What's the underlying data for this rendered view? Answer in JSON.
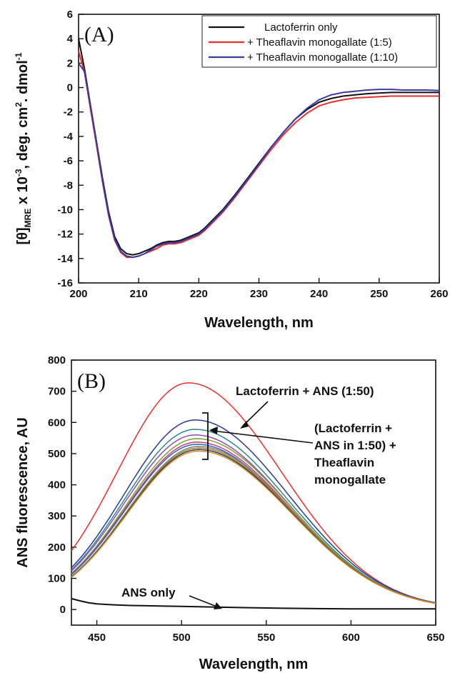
{
  "chart_data": [
    {
      "type": "line",
      "panel_label": "(A)",
      "xlabel": "Wavelength, nm",
      "ylabel_parts": {
        "main": "[θ]",
        "sub": "MRE",
        "mid": " x 10",
        "sup": "-3",
        "rest": ", deg. cm",
        "sup2": "2",
        "end": ". dmol",
        "sup3": "-1"
      },
      "xlim": [
        200,
        260
      ],
      "ylim": [
        -16,
        6
      ],
      "xticks": [
        200,
        210,
        220,
        230,
        240,
        250,
        260
      ],
      "yticks": [
        -16,
        -14,
        -12,
        -10,
        -8,
        -6,
        -4,
        -2,
        0,
        2,
        4,
        6
      ],
      "legend": "top-right",
      "series": [
        {
          "name": "Lactoferrin only",
          "color": "#111111",
          "x": [
            200,
            201,
            202,
            203,
            204,
            205,
            206,
            207,
            208,
            209,
            210,
            211,
            212,
            213,
            214,
            215,
            216,
            217,
            218,
            219,
            220,
            221,
            222,
            224,
            226,
            228,
            230,
            232,
            234,
            236,
            238,
            240,
            242,
            244,
            246,
            248,
            250,
            252,
            254,
            256,
            258,
            260
          ],
          "y": [
            4.0,
            1.5,
            -1.5,
            -4.5,
            -7.5,
            -10.2,
            -12.2,
            -13.2,
            -13.6,
            -13.7,
            -13.6,
            -13.4,
            -13.2,
            -12.9,
            -12.7,
            -12.6,
            -12.6,
            -12.5,
            -12.3,
            -12.1,
            -11.9,
            -11.5,
            -11.0,
            -10.0,
            -8.8,
            -7.5,
            -6.2,
            -4.9,
            -3.7,
            -2.6,
            -1.8,
            -1.2,
            -0.9,
            -0.7,
            -0.6,
            -0.5,
            -0.45,
            -0.4,
            -0.4,
            -0.4,
            -0.4,
            -0.4
          ]
        },
        {
          "name": "+ Theaflavin monogallate (1:5)",
          "color": "#e8302a",
          "x": [
            200,
            201,
            202,
            203,
            204,
            205,
            206,
            207,
            208,
            209,
            210,
            211,
            212,
            213,
            214,
            215,
            216,
            217,
            218,
            219,
            220,
            221,
            222,
            224,
            226,
            228,
            230,
            232,
            234,
            236,
            238,
            240,
            242,
            244,
            246,
            248,
            250,
            252,
            254,
            256,
            258,
            260
          ],
          "y": [
            3.0,
            1.2,
            -1.8,
            -4.8,
            -7.8,
            -10.5,
            -12.5,
            -13.5,
            -13.9,
            -13.9,
            -13.8,
            -13.6,
            -13.4,
            -13.2,
            -12.9,
            -12.8,
            -12.8,
            -12.7,
            -12.5,
            -12.3,
            -12.1,
            -11.7,
            -11.2,
            -10.2,
            -9.0,
            -7.7,
            -6.4,
            -5.1,
            -3.9,
            -2.9,
            -2.1,
            -1.5,
            -1.2,
            -1.0,
            -0.85,
            -0.8,
            -0.75,
            -0.7,
            -0.7,
            -0.7,
            -0.7,
            -0.7
          ]
        },
        {
          "name": "+ Theaflavin monogallate (1:10)",
          "color": "#3a3aa8",
          "x": [
            200,
            201,
            202,
            203,
            204,
            205,
            206,
            207,
            208,
            209,
            210,
            211,
            212,
            213,
            214,
            215,
            216,
            217,
            218,
            219,
            220,
            221,
            222,
            224,
            226,
            228,
            230,
            232,
            234,
            236,
            238,
            240,
            242,
            244,
            246,
            248,
            250,
            252,
            254,
            256,
            258,
            260
          ],
          "y": [
            2.0,
            1.3,
            -1.6,
            -4.6,
            -7.7,
            -10.4,
            -12.4,
            -13.4,
            -13.8,
            -13.9,
            -13.8,
            -13.6,
            -13.3,
            -13.0,
            -12.8,
            -12.7,
            -12.7,
            -12.6,
            -12.4,
            -12.2,
            -12.0,
            -11.6,
            -11.1,
            -10.1,
            -8.9,
            -7.6,
            -6.3,
            -4.9,
            -3.7,
            -2.6,
            -1.7,
            -1.0,
            -0.6,
            -0.4,
            -0.3,
            -0.2,
            -0.15,
            -0.15,
            -0.2,
            -0.2,
            -0.2,
            -0.25
          ]
        }
      ]
    },
    {
      "type": "line",
      "panel_label": "(B)",
      "xlabel": "Wavelength, nm",
      "ylabel": "ANS fluorescence, AU",
      "xlim": [
        435,
        650
      ],
      "ylim": [
        -50,
        800
      ],
      "xticks": [
        450,
        500,
        550,
        600,
        650
      ],
      "yticks": [
        0,
        100,
        200,
        300,
        400,
        500,
        600,
        700,
        800
      ],
      "annotations": [
        {
          "text": "Lactoferrin + ANS (1:50)",
          "lines": [
            "Lactoferrin + ANS (1:50)"
          ]
        },
        {
          "text": "(Lactoferrin + ANS in 1:50) + Theaflavin monogallate",
          "lines": [
            "(Lactoferrin +",
            "ANS in 1:50) +",
            "Theaflavin",
            "monogallate"
          ]
        },
        {
          "text": "ANS only",
          "lines": [
            "ANS only"
          ]
        }
      ],
      "peak_curves": [
        {
          "peak": 727,
          "peak_x": 504,
          "color": "#e8302a"
        },
        {
          "peak": 608,
          "peak_x": 508,
          "color": "#2a3a9a"
        },
        {
          "peak": 578,
          "peak_x": 508,
          "color": "#2a8a8a"
        },
        {
          "peak": 560,
          "peak_x": 508,
          "color": "#9a4ab0"
        },
        {
          "peak": 548,
          "peak_x": 509,
          "color": "#7aa030"
        },
        {
          "peak": 537,
          "peak_x": 509,
          "color": "#c04080"
        },
        {
          "peak": 530,
          "peak_x": 509,
          "color": "#3060c0"
        },
        {
          "peak": 523,
          "peak_x": 510,
          "color": "#808080"
        },
        {
          "peak": 518,
          "peak_x": 510,
          "color": "#b08020"
        },
        {
          "peak": 513,
          "peak_x": 510,
          "color": "#204060"
        },
        {
          "peak": 508,
          "peak_x": 510,
          "color": "#e08a20"
        }
      ],
      "ans_only": {
        "color": "#111111",
        "x": [
          435,
          440,
          445,
          450,
          460,
          470,
          480,
          490,
          500,
          520,
          540,
          560,
          580,
          600,
          620,
          650
        ],
        "y": [
          35,
          28,
          22,
          18,
          15,
          13,
          12,
          11,
          10,
          8,
          6,
          4,
          3,
          2,
          2,
          2
        ]
      }
    }
  ]
}
